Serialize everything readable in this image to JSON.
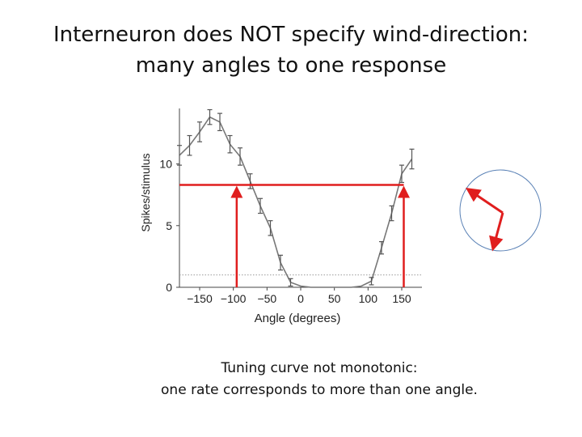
{
  "slide": {
    "title_line1": "Interneuron does NOT specify wind-direction:",
    "title_line2": "many angles to one response",
    "caption_line1": "Tuning curve not monotonic:",
    "caption_line2": "one rate corresponds to more than one angle."
  },
  "colors": {
    "curve": "#777777",
    "annotation": "#e01e1e",
    "circle": "#5b82b6",
    "dotted": "#999999",
    "axis": "#444444"
  },
  "chart_data": {
    "type": "line",
    "xlabel": "Angle (degrees)",
    "ylabel": "Spikes/stimulus",
    "xlim": [
      -180,
      180
    ],
    "ylim": [
      0,
      14.5
    ],
    "x_ticks": [
      -150,
      -100,
      -50,
      0,
      50,
      100,
      150
    ],
    "x_tick_labels": [
      "−150",
      "−100",
      "−50",
      "0",
      "50",
      "100",
      "150"
    ],
    "y_ticks": [
      0,
      5,
      10
    ],
    "y_tick_labels": [
      "0",
      "5",
      "10"
    ],
    "grid": false,
    "baseline_dotted_y": 1.0,
    "series": [
      {
        "x": [
          -180,
          -165,
          -150,
          -135,
          -120,
          -105,
          -90,
          -75,
          -60,
          -45,
          -30,
          -15,
          0,
          15,
          30,
          45,
          60,
          75,
          90,
          105,
          120,
          135,
          150,
          165
        ],
        "y": [
          10.7,
          11.5,
          12.6,
          13.8,
          13.4,
          11.6,
          10.6,
          8.6,
          6.6,
          4.8,
          2.0,
          0.4,
          0.1,
          0.0,
          0.0,
          0.0,
          0.0,
          0.0,
          0.1,
          0.5,
          3.2,
          6.0,
          9.2,
          10.4
        ],
        "err": [
          0.8,
          0.8,
          0.8,
          0.6,
          0.7,
          0.7,
          0.7,
          0.6,
          0.6,
          0.6,
          0.6,
          0.3,
          0.1,
          0.05,
          0.05,
          0.05,
          0.05,
          0.05,
          0.1,
          0.3,
          0.5,
          0.6,
          0.7,
          0.8
        ]
      }
    ],
    "annotation": {
      "rate_level": 8.3,
      "angles": [
        -95,
        153
      ]
    },
    "direction_inset": {
      "shape": "circle",
      "arrows": "two red arrows from the center toward two different wind directions"
    }
  }
}
